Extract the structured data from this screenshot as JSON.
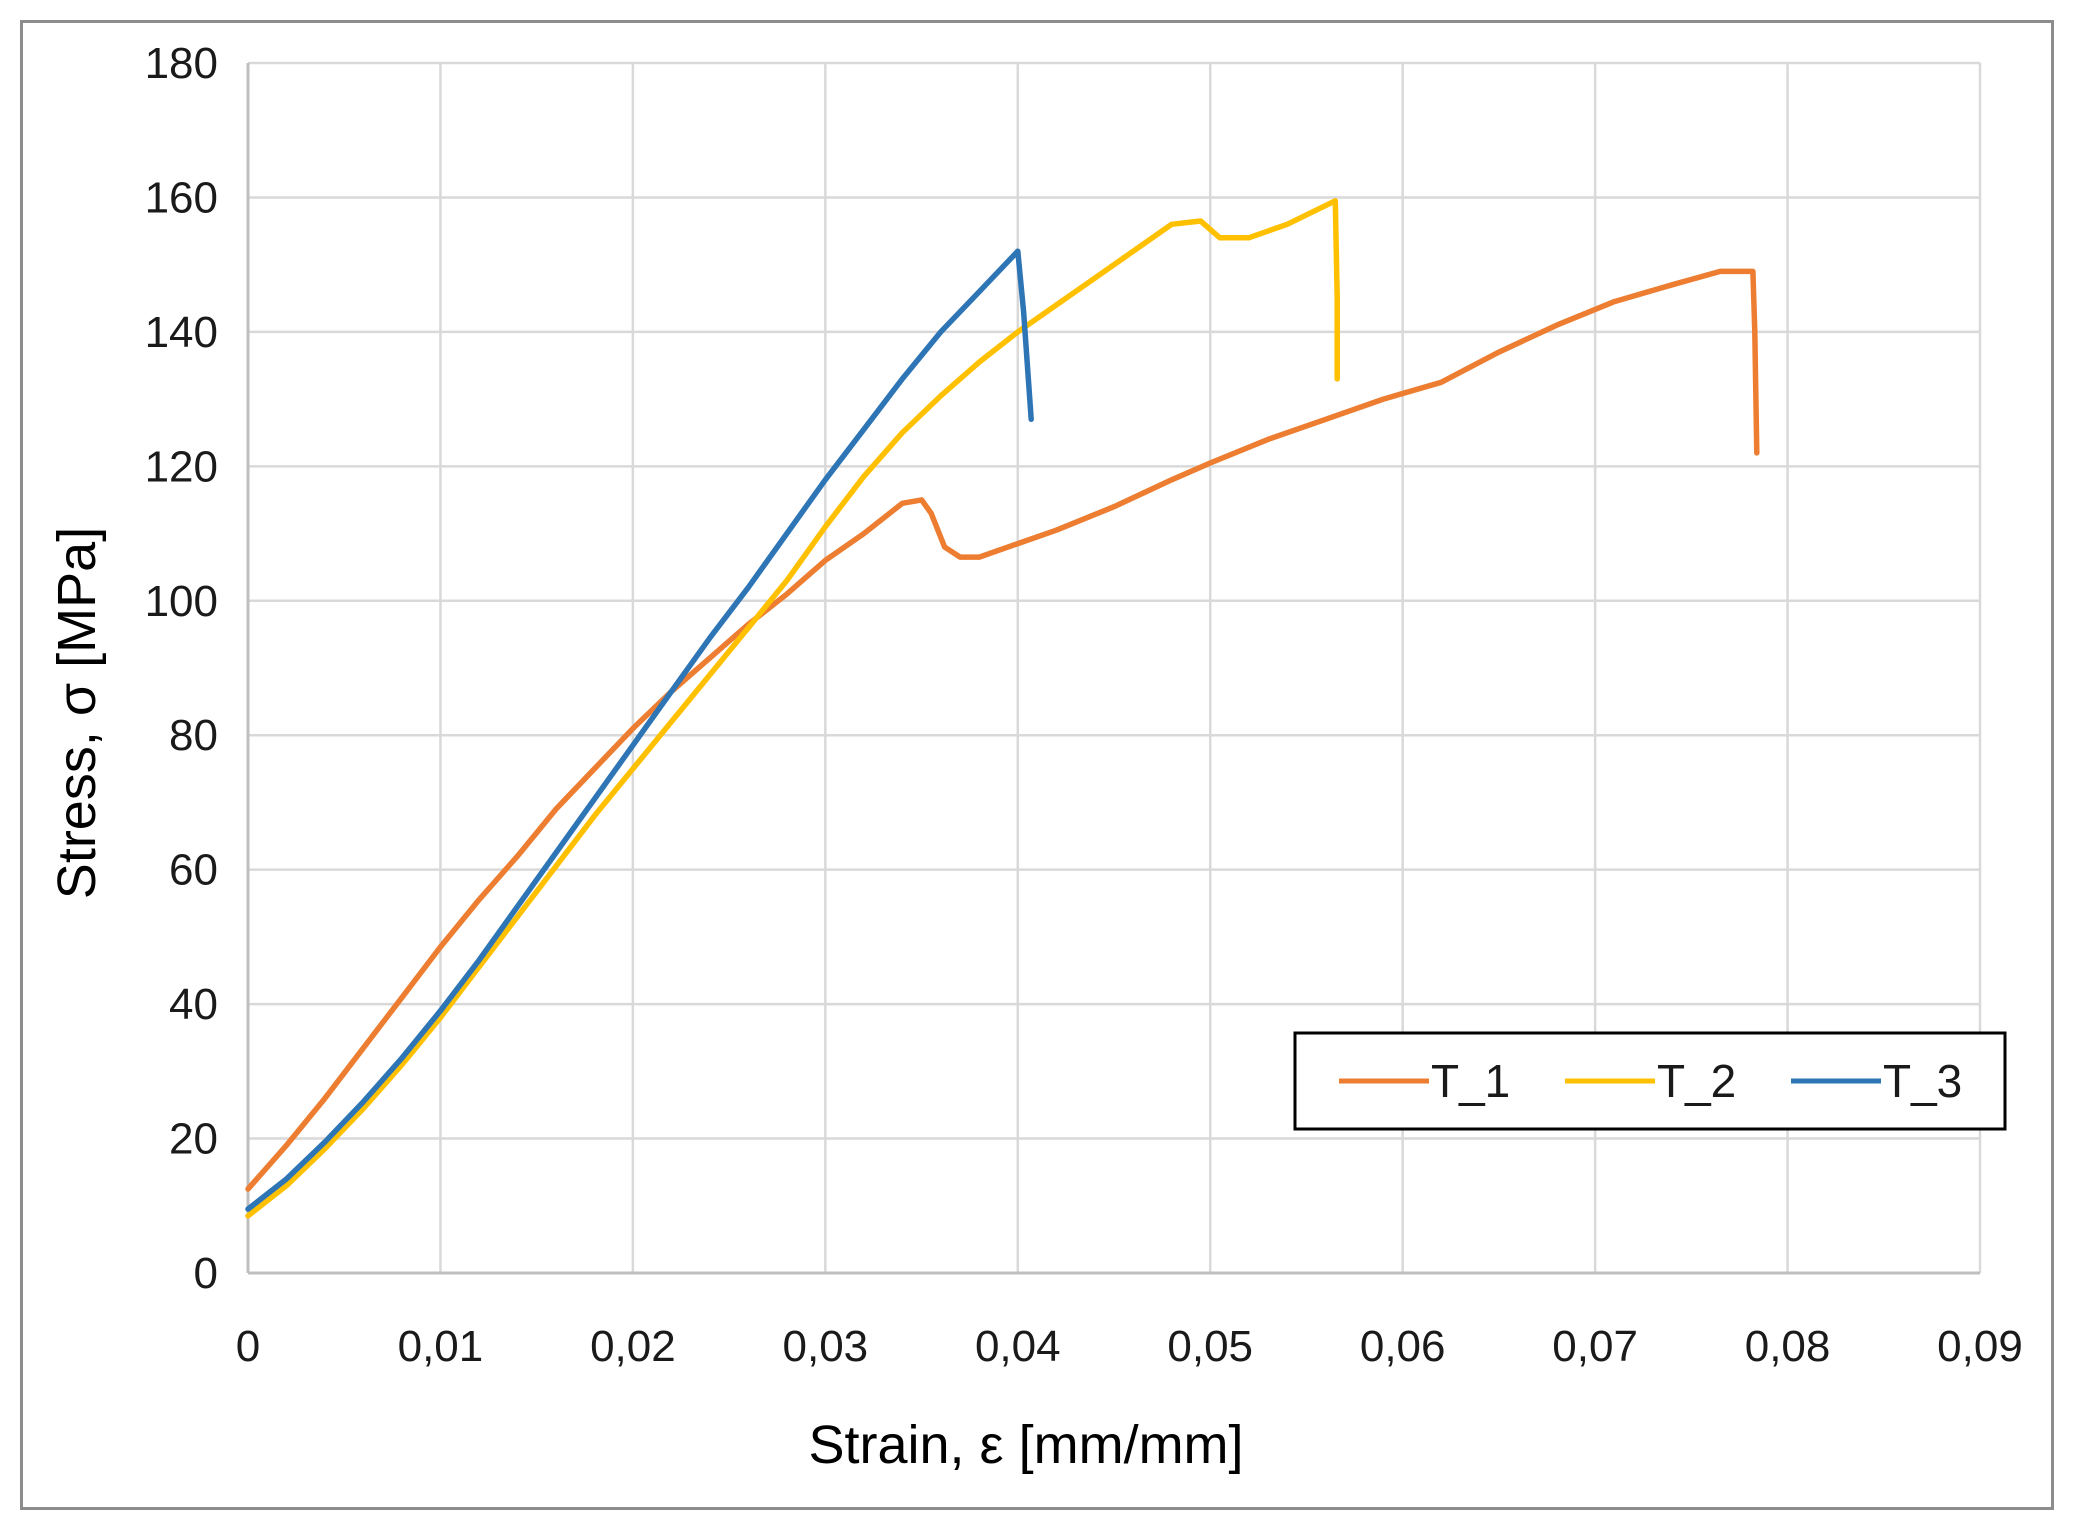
{
  "chart_data": {
    "type": "line",
    "title": "",
    "xlabel": "Strain, ε [mm/mm]",
    "ylabel": "Stress, σ [MPa]",
    "xlim": [
      0,
      0.09
    ],
    "ylim": [
      0,
      180
    ],
    "x_ticks": [
      "0",
      "0,01",
      "0,02",
      "0,03",
      "0,04",
      "0,05",
      "0,06",
      "0,07",
      "0,08",
      "0,09"
    ],
    "y_ticks": [
      "0",
      "20",
      "40",
      "60",
      "80",
      "100",
      "120",
      "140",
      "160",
      "180"
    ],
    "grid": true,
    "legend_position": "bottom-right",
    "series": [
      {
        "name": "T_1",
        "color": "#ED7D31",
        "points": [
          [
            0,
            12.5
          ],
          [
            0.002,
            19
          ],
          [
            0.004,
            26
          ],
          [
            0.006,
            33.5
          ],
          [
            0.008,
            41
          ],
          [
            0.01,
            48.5
          ],
          [
            0.012,
            55.5
          ],
          [
            0.014,
            62
          ],
          [
            0.016,
            69
          ],
          [
            0.018,
            75
          ],
          [
            0.02,
            81
          ],
          [
            0.022,
            86.5
          ],
          [
            0.024,
            91.5
          ],
          [
            0.026,
            96.5
          ],
          [
            0.028,
            101
          ],
          [
            0.03,
            106
          ],
          [
            0.032,
            110
          ],
          [
            0.034,
            114.5
          ],
          [
            0.035,
            115
          ],
          [
            0.0355,
            113
          ],
          [
            0.0362,
            108
          ],
          [
            0.037,
            106.5
          ],
          [
            0.038,
            106.5
          ],
          [
            0.04,
            108.5
          ],
          [
            0.042,
            110.5
          ],
          [
            0.045,
            114
          ],
          [
            0.048,
            118
          ],
          [
            0.05,
            120.5
          ],
          [
            0.053,
            124
          ],
          [
            0.056,
            127
          ],
          [
            0.059,
            130
          ],
          [
            0.062,
            132.5
          ],
          [
            0.065,
            137
          ],
          [
            0.068,
            141
          ],
          [
            0.071,
            144.5
          ],
          [
            0.074,
            147
          ],
          [
            0.0765,
            149
          ],
          [
            0.0782,
            149
          ],
          [
            0.0783,
            140
          ],
          [
            0.0784,
            122
          ]
        ]
      },
      {
        "name": "T_2",
        "color": "#FFC000",
        "points": [
          [
            0,
            8.5
          ],
          [
            0.002,
            13
          ],
          [
            0.004,
            18.5
          ],
          [
            0.006,
            24.5
          ],
          [
            0.008,
            31
          ],
          [
            0.01,
            38
          ],
          [
            0.012,
            45.5
          ],
          [
            0.014,
            53
          ],
          [
            0.016,
            60.5
          ],
          [
            0.018,
            68
          ],
          [
            0.02,
            75
          ],
          [
            0.022,
            82
          ],
          [
            0.024,
            89
          ],
          [
            0.026,
            96
          ],
          [
            0.028,
            103
          ],
          [
            0.03,
            111
          ],
          [
            0.032,
            118.5
          ],
          [
            0.034,
            125
          ],
          [
            0.036,
            130.5
          ],
          [
            0.038,
            135.5
          ],
          [
            0.04,
            140
          ],
          [
            0.042,
            144
          ],
          [
            0.044,
            148
          ],
          [
            0.046,
            152
          ],
          [
            0.048,
            156
          ],
          [
            0.0495,
            156.5
          ],
          [
            0.0505,
            154
          ],
          [
            0.052,
            154
          ],
          [
            0.054,
            156
          ],
          [
            0.0565,
            159.5
          ],
          [
            0.0566,
            145
          ],
          [
            0.0566,
            133
          ]
        ]
      },
      {
        "name": "T_3",
        "color": "#2E75B6",
        "points": [
          [
            0,
            9.5
          ],
          [
            0.002,
            14
          ],
          [
            0.004,
            19.5
          ],
          [
            0.006,
            25.5
          ],
          [
            0.008,
            32
          ],
          [
            0.01,
            39
          ],
          [
            0.012,
            46.5
          ],
          [
            0.014,
            54.5
          ],
          [
            0.016,
            62.5
          ],
          [
            0.018,
            70.5
          ],
          [
            0.02,
            78.5
          ],
          [
            0.022,
            86.5
          ],
          [
            0.024,
            94.5
          ],
          [
            0.026,
            102
          ],
          [
            0.028,
            110
          ],
          [
            0.03,
            118
          ],
          [
            0.032,
            125.5
          ],
          [
            0.034,
            133
          ],
          [
            0.036,
            140
          ],
          [
            0.038,
            146
          ],
          [
            0.04,
            152
          ],
          [
            0.0403,
            143
          ],
          [
            0.0407,
            127
          ]
        ]
      }
    ]
  }
}
